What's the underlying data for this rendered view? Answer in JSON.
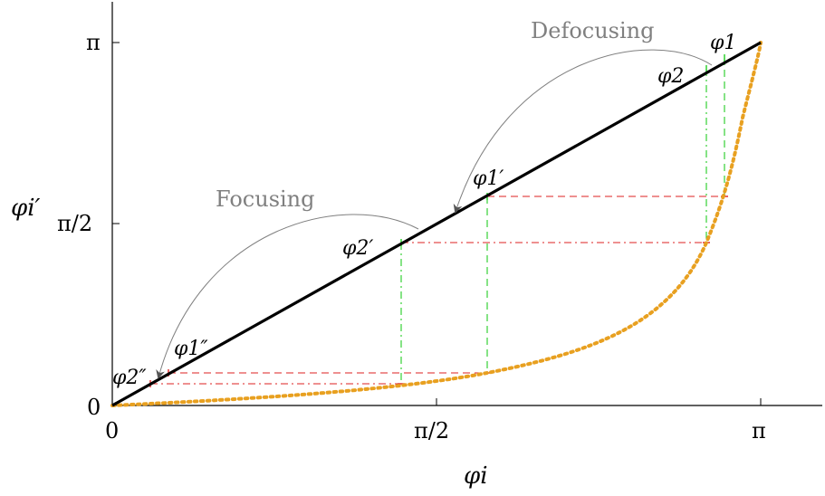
{
  "axes": {
    "x_label": "φi",
    "y_label": "φi′",
    "x_ticks": [
      "0",
      "π/2",
      "π"
    ],
    "y_ticks": [
      "0",
      "π/2",
      "π"
    ]
  },
  "annotations": {
    "focusing": "Focusing",
    "defocusing": "Defocusing"
  },
  "points": {
    "phi1": "φ1",
    "phi2": "φ2",
    "phi1p": "φ1′",
    "phi2p": "φ2′",
    "phi1pp": "φ1″",
    "phi2pp": "φ2″"
  },
  "colors": {
    "identity_line": "#000000",
    "curve": "#e8a020",
    "vertical_guides": "#22cc22",
    "horizontal_guides": "#dd2222",
    "arrows": "#808080",
    "annotation_text": "#808080"
  }
}
